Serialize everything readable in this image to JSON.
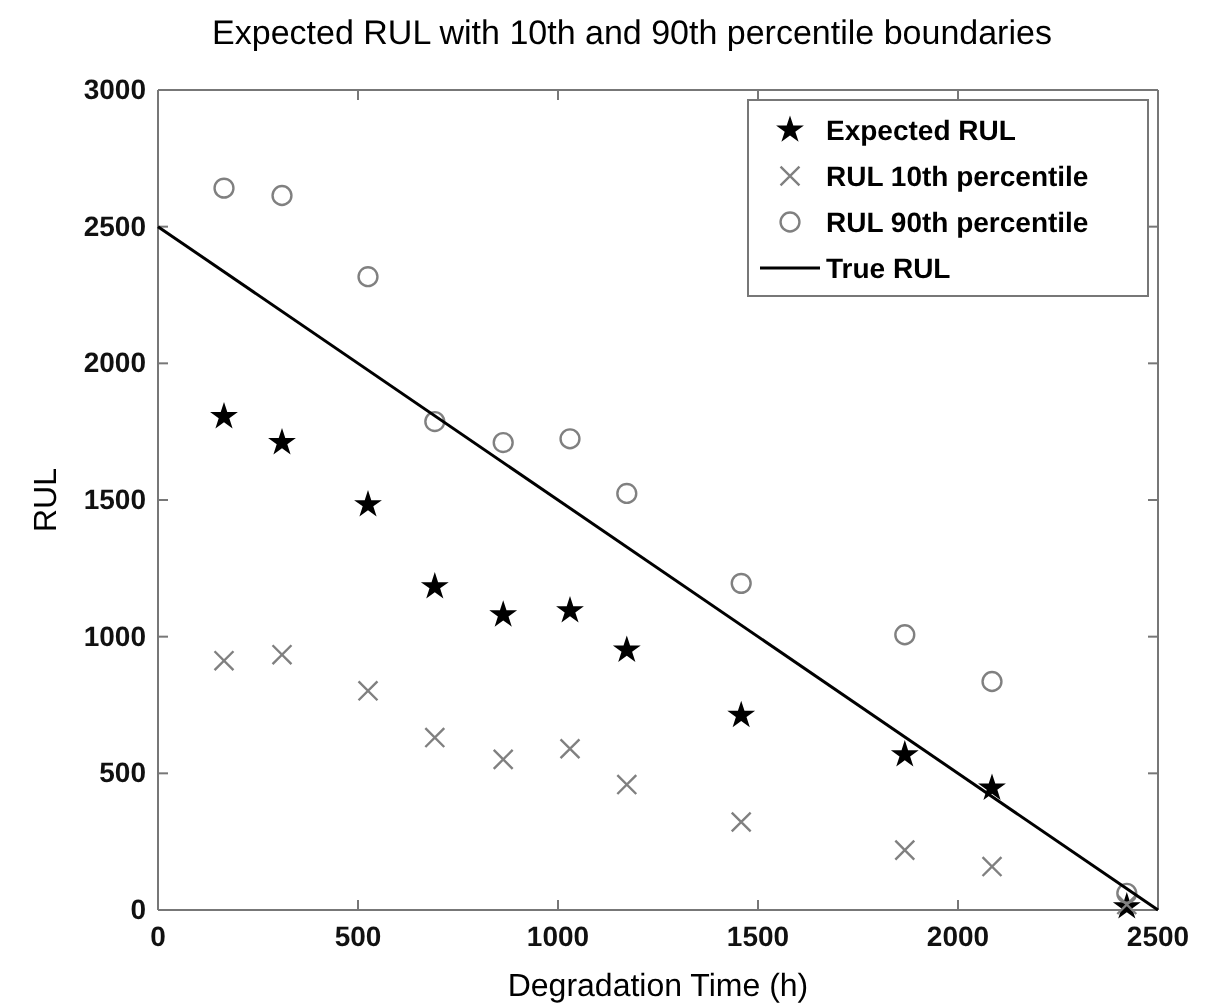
{
  "chart_data": {
    "type": "scatter",
    "title": "Expected RUL with 10th and 90th percentile boundaries",
    "xlabel": "Degradation Time (h)",
    "ylabel": "RUL",
    "x": [
      165,
      310,
      525,
      692,
      863,
      1030,
      1172,
      1458,
      1867,
      2085,
      2422
    ],
    "series": [
      {
        "name": "Expected RUL",
        "color": "#000000",
        "marker": "star",
        "values": [
          1805,
          1710,
          1483,
          1183,
          1080,
          1095,
          951,
          712,
          568,
          446,
          12
        ]
      },
      {
        "name": "RUL 10th percentile",
        "color": "#808080",
        "marker": "cross",
        "values": [
          912,
          934,
          802,
          631,
          551,
          590,
          459,
          322,
          219,
          159,
          20
        ]
      },
      {
        "name": "RUL 90th percentile",
        "color": "#808080",
        "marker": "circle",
        "values": [
          2641,
          2614,
          2317,
          1787,
          1710,
          1724,
          1524,
          1195,
          1007,
          836,
          61
        ]
      },
      {
        "name": "True RUL",
        "type": "line",
        "color": "#000000",
        "line_style": "solid",
        "marker": "none",
        "x": [
          0,
          2500
        ],
        "values": [
          2500,
          0
        ]
      }
    ],
    "xlim": [
      0,
      2500
    ],
    "xticks": [
      0,
      500,
      1000,
      1500,
      2000,
      2500
    ],
    "ylim": [
      0,
      3000
    ],
    "yticks": [
      0,
      500,
      1000,
      1500,
      2000,
      2500,
      3000
    ],
    "grid": false,
    "legend": "top right"
  }
}
